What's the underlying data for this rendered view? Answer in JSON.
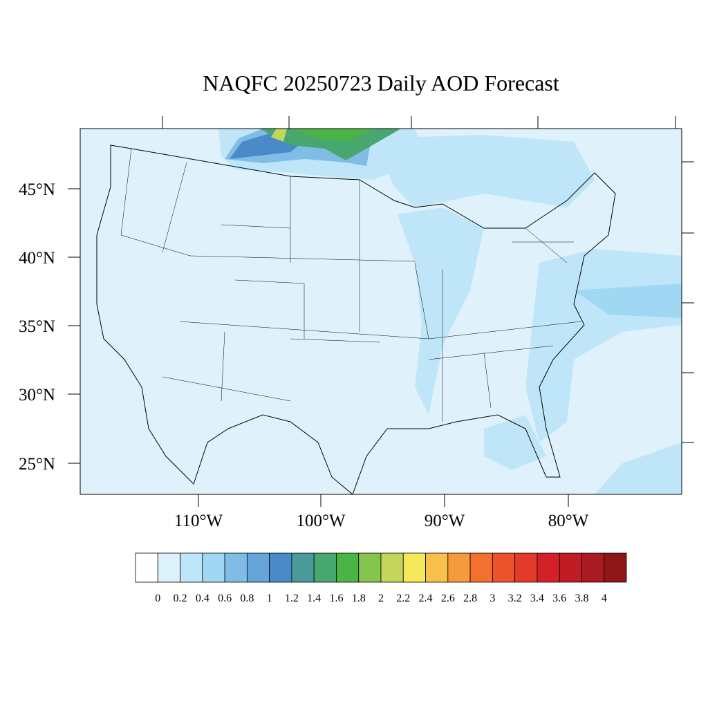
{
  "title": "NAQFC 20250723 Daily AOD Forecast",
  "lat_labels": [
    "45°N",
    "40°N",
    "35°N",
    "30°N",
    "25°N"
  ],
  "lon_labels": [
    "110°W",
    "100°W",
    "90°W",
    "80°W"
  ],
  "colorbar": {
    "colors": [
      "#ffffff",
      "#ddf1fb",
      "#bfe6f8",
      "#a0d8f3",
      "#80bde6",
      "#66a5da",
      "#4a8ac8",
      "#4b9a9a",
      "#48a66f",
      "#4ab445",
      "#85c44e",
      "#c3d65b",
      "#f6e85b",
      "#f8c04a",
      "#f69a3e",
      "#f4702f",
      "#ec532c",
      "#e23b2a",
      "#d42028",
      "#bf1c25",
      "#a81b22",
      "#8e1619"
    ],
    "labels": [
      "0",
      "0.2",
      "0.4",
      "0.6",
      "0.8",
      "1",
      "1.2",
      "1.4",
      "1.6",
      "1.8",
      "2",
      "2.2",
      "2.4",
      "2.6",
      "2.8",
      "3",
      "3.2",
      "3.4",
      "3.6",
      "3.8",
      "4"
    ]
  }
}
